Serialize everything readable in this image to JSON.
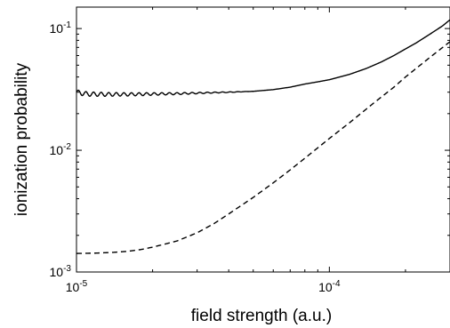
{
  "chart_data": {
    "type": "line",
    "title": "",
    "xlabel": "field strength (a.u.)",
    "ylabel": "ionization probability",
    "x_scale": "log",
    "y_scale": "log",
    "xlim": [
      1e-05,
      0.0003
    ],
    "ylim": [
      0.001,
      0.15
    ],
    "grid": false,
    "legend": "none",
    "x_ticks": [
      {
        "value": 1e-05,
        "base": "10",
        "exp": "-5"
      },
      {
        "value": 0.0001,
        "base": "10",
        "exp": "-4"
      }
    ],
    "y_ticks": [
      {
        "value": 0.001,
        "base": "10",
        "exp": "-3"
      },
      {
        "value": 0.01,
        "base": "10",
        "exp": "-2"
      },
      {
        "value": 0.1,
        "base": "10",
        "exp": "-1"
      }
    ],
    "series": [
      {
        "style": "solid",
        "color": "#000000",
        "oscillation": {
          "from": 1e-05,
          "to": 5e-05,
          "relative_amplitude": 0.045,
          "period_log10": 0.03
        },
        "x": [
          1e-05,
          1.1e-05,
          1.3e-05,
          1.6e-05,
          2e-05,
          2.5e-05,
          3e-05,
          3.5e-05,
          4e-05,
          5e-05,
          6e-05,
          7e-05,
          8e-05,
          9e-05,
          0.0001,
          0.00012,
          0.00014,
          0.00016,
          0.00018,
          0.0002,
          0.00022,
          0.00025,
          0.00028,
          0.0003
        ],
        "y": [
          0.03,
          0.029,
          0.0288,
          0.0288,
          0.029,
          0.0292,
          0.0295,
          0.0298,
          0.03,
          0.0305,
          0.0315,
          0.033,
          0.035,
          0.0365,
          0.038,
          0.042,
          0.047,
          0.053,
          0.06,
          0.068,
          0.076,
          0.09,
          0.105,
          0.118
        ]
      },
      {
        "style": "dashed",
        "color": "#000000",
        "x": [
          1e-05,
          1.2e-05,
          1.4e-05,
          1.6e-05,
          1.8e-05,
          2e-05,
          2.2e-05,
          2.5e-05,
          3e-05,
          3.5e-05,
          4e-05,
          5e-05,
          6e-05,
          7e-05,
          8e-05,
          0.0001,
          0.00012,
          0.00015,
          0.00018,
          0.0002,
          0.00025,
          0.0003
        ],
        "y": [
          0.00142,
          0.00143,
          0.00145,
          0.00148,
          0.00153,
          0.0016,
          0.00168,
          0.0018,
          0.0021,
          0.0025,
          0.003,
          0.0041,
          0.0054,
          0.0069,
          0.0086,
          0.0125,
          0.0168,
          0.0245,
          0.033,
          0.04,
          0.058,
          0.078
        ]
      }
    ]
  }
}
